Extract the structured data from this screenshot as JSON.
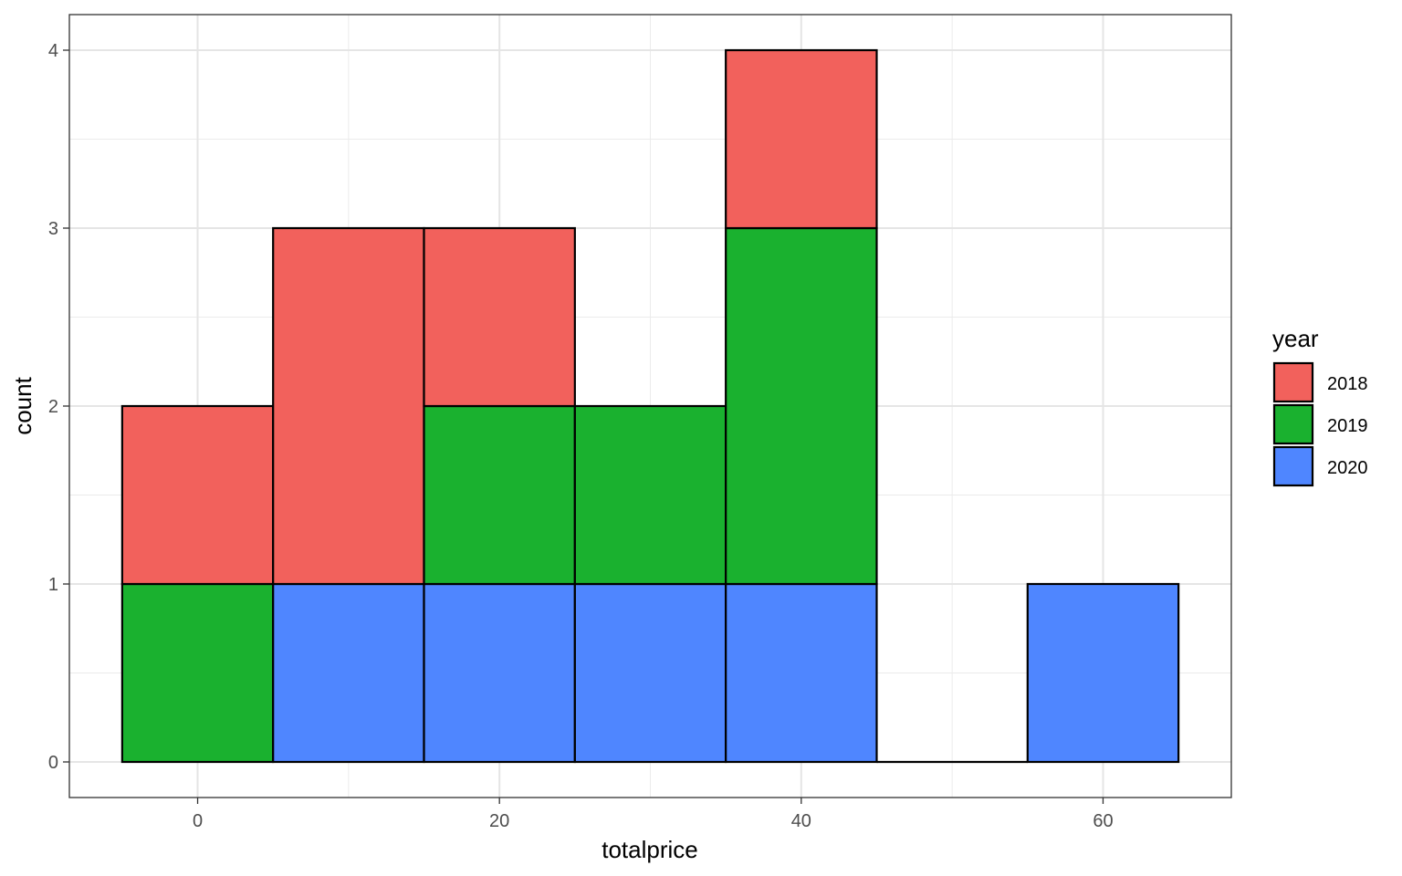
{
  "chart_data": {
    "type": "bar",
    "subtype": "stacked-histogram",
    "xlabel": "totalprice",
    "ylabel": "count",
    "xlim": [
      -8.5,
      68.5
    ],
    "ylim": [
      -0.2,
      4.2
    ],
    "xticks": [
      0,
      20,
      40,
      60
    ],
    "yticks": [
      0,
      1,
      2,
      3,
      4
    ],
    "grid": true,
    "legend": {
      "title": "year",
      "position": "right"
    },
    "bins": [
      {
        "x0": -5,
        "x1": 5
      },
      {
        "x0": 5,
        "x1": 15
      },
      {
        "x0": 15,
        "x1": 25
      },
      {
        "x0": 25,
        "x1": 35
      },
      {
        "x0": 35,
        "x1": 45
      },
      {
        "x0": 45,
        "x1": 55
      },
      {
        "x0": 55,
        "x1": 65
      }
    ],
    "series": [
      {
        "name": "2020",
        "color": "#4f86ff",
        "values": [
          0,
          1,
          1,
          1,
          1,
          0,
          1
        ]
      },
      {
        "name": "2019",
        "color": "#1ab12f",
        "values": [
          1,
          0,
          1,
          1,
          2,
          0,
          0
        ]
      },
      {
        "name": "2018",
        "color": "#f2615c",
        "values": [
          1,
          2,
          1,
          0,
          1,
          0,
          0
        ]
      }
    ],
    "legend_order": [
      "2018",
      "2019",
      "2020"
    ]
  }
}
